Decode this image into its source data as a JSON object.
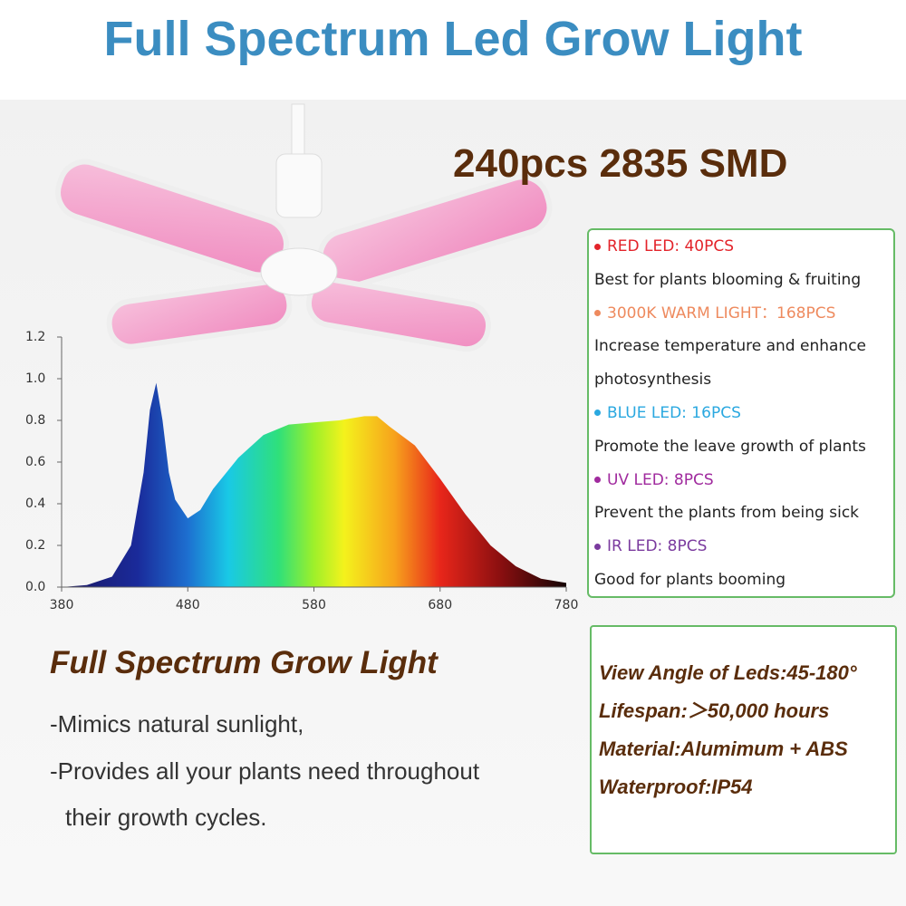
{
  "title": "Full Spectrum Led Grow Light",
  "badge": "240pcs 2835 SMD",
  "led_list": [
    {
      "label": "RED LED: 40PCS",
      "color": "#e3232a",
      "desc": "Best for plants blooming & fruiting"
    },
    {
      "label": "3000K WARM LIGHT：168PCS",
      "color": "#ee8a5e",
      "desc": "Increase temperature and enhance photosynthesis"
    },
    {
      "label": "BLUE LED: 16PCS",
      "color": "#2aa8e0",
      "desc": "Promote the leave growth of plants"
    },
    {
      "label": "UV LED: 8PCS",
      "color": "#a02a9e",
      "desc": "Prevent the plants from being sick"
    },
    {
      "label": "IR LED: 8PCS",
      "color": "#7a3a9e",
      "desc": "Good for plants booming"
    }
  ],
  "chart_data": {
    "type": "area",
    "x": [
      380,
      400,
      420,
      435,
      445,
      450,
      455,
      460,
      465,
      470,
      480,
      490,
      500,
      520,
      540,
      560,
      580,
      600,
      620,
      630,
      640,
      660,
      680,
      700,
      720,
      740,
      760,
      780
    ],
    "values": [
      0,
      0.01,
      0.05,
      0.2,
      0.55,
      0.85,
      0.98,
      0.8,
      0.55,
      0.42,
      0.33,
      0.37,
      0.47,
      0.62,
      0.73,
      0.78,
      0.79,
      0.8,
      0.82,
      0.82,
      0.77,
      0.68,
      0.52,
      0.35,
      0.2,
      0.1,
      0.04,
      0.02
    ],
    "xlim": [
      380,
      780
    ],
    "ylim": [
      0,
      1.2
    ],
    "xticks": [
      380,
      480,
      580,
      680,
      780
    ],
    "yticks": [
      {
        "value": 0,
        "label": "0.0"
      },
      0.2,
      0.4,
      0.6,
      0.8,
      {
        "value": 1,
        "label": "1.0"
      },
      1.2
    ]
  },
  "features": {
    "heading": "Full Spectrum Grow Light",
    "lines": [
      "-Mimics natural sunlight,",
      "-Provides all your plants need throughout",
      "their growth cycles."
    ]
  },
  "specs": [
    "View Angle of Leds:45-180°",
    "Lifespan:＞50,000 hours",
    "Material:Alumimum + ABS",
    "Waterproof:IP54"
  ]
}
